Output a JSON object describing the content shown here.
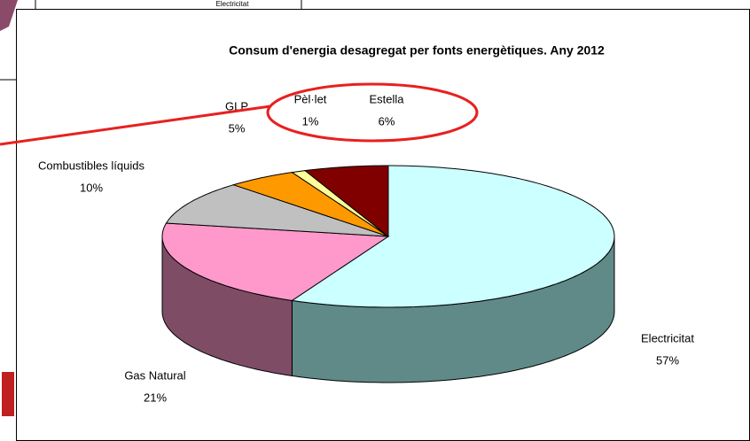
{
  "background_label": "Electricitat",
  "chart_data": {
    "type": "pie3d",
    "title": "Consum d'energia desagregat per fonts energètiques. Any 2012",
    "categories": [
      "Electricitat",
      "Gas Natural",
      "Combustibles líquids",
      "GLP",
      "Pèl·let",
      "Estella"
    ],
    "values": [
      57,
      21,
      10,
      5,
      1,
      6
    ],
    "value_labels": [
      "57%",
      "21%",
      "10%",
      "5%",
      "1%",
      "6%"
    ],
    "colors": [
      "#ccffff",
      "#ff99cc",
      "#c0c0c0",
      "#ff9900",
      "#ffff99",
      "#800000"
    ],
    "side_colors": [
      "#5f8a87",
      "#7f4c66",
      "#808080",
      "#7f4c00",
      "#808040",
      "#400000"
    ]
  }
}
